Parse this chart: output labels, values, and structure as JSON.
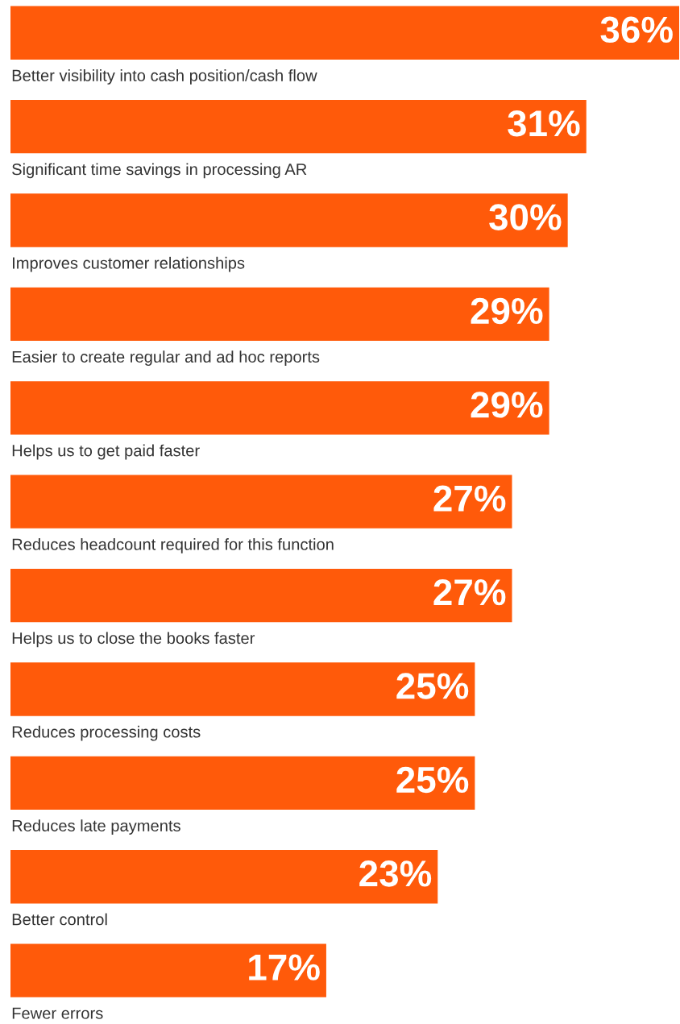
{
  "chart_data": {
    "type": "bar",
    "orientation": "horizontal",
    "categories": [
      "Better visibility into cash position/cash flow",
      "Significant time savings in processing AR",
      "Improves customer relationships",
      "Easier to create regular and ad hoc reports",
      "Helps us to get paid faster",
      "Reduces headcount required for this function",
      "Helps us to close the books faster",
      "Reduces processing costs",
      "Reduces late payments",
      "Better control",
      "Fewer errors"
    ],
    "values": [
      36,
      31,
      30,
      29,
      29,
      27,
      27,
      25,
      25,
      23,
      17
    ],
    "value_labels": [
      "36%",
      "31%",
      "30%",
      "29%",
      "29%",
      "27%",
      "27%",
      "25%",
      "25%",
      "23%",
      "17%"
    ],
    "color": "#ff5a0a",
    "tick_labels": false
  }
}
